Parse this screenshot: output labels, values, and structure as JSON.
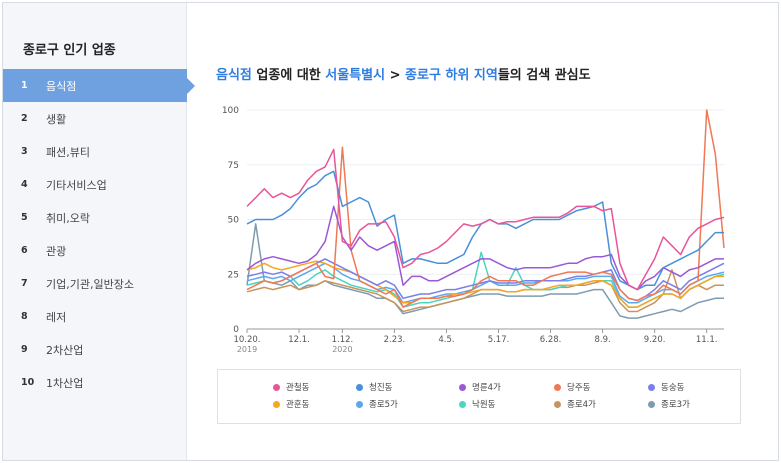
{
  "sidebar": {
    "title": "종로구 인기 업종",
    "items": [
      {
        "num": "1",
        "label": "음식점"
      },
      {
        "num": "2",
        "label": "생활"
      },
      {
        "num": "3",
        "label": "패션,뷰티"
      },
      {
        "num": "4",
        "label": "기타서비스업"
      },
      {
        "num": "5",
        "label": "취미,오락"
      },
      {
        "num": "6",
        "label": "관광"
      },
      {
        "num": "7",
        "label": "기업,기관,일반장소"
      },
      {
        "num": "8",
        "label": "레저"
      },
      {
        "num": "9",
        "label": "2차산업"
      },
      {
        "num": "10",
        "label": "1차산업"
      }
    ]
  },
  "heading": {
    "category": "음식점",
    "t1": " 업종에 대한 ",
    "city": "서울특별시",
    "sep": " > ",
    "district": "종로구 하위 지역",
    "t2": "들의 검색 관심도"
  },
  "chart_data": {
    "type": "line",
    "title": "",
    "xlabel": "",
    "ylabel": "",
    "ylim": [
      0,
      100
    ],
    "yticks": [
      0,
      25,
      50,
      75,
      100
    ],
    "n_points": 56,
    "xticks": [
      {
        "i": 0,
        "label": "10.20.",
        "sub": "2019"
      },
      {
        "i": 6,
        "label": "12.1.",
        "sub": ""
      },
      {
        "i": 11,
        "label": "1.12.",
        "sub": "2020"
      },
      {
        "i": 17,
        "label": "2.23.",
        "sub": ""
      },
      {
        "i": 23,
        "label": "4.5.",
        "sub": ""
      },
      {
        "i": 29,
        "label": "5.17.",
        "sub": ""
      },
      {
        "i": 35,
        "label": "6.28.",
        "sub": ""
      },
      {
        "i": 41,
        "label": "8.9.",
        "sub": ""
      },
      {
        "i": 47,
        "label": "9.20.",
        "sub": ""
      },
      {
        "i": 53,
        "label": "11.1.",
        "sub": ""
      }
    ],
    "series": [
      {
        "name": "관철동",
        "color": "#e8559a",
        "values": [
          56,
          60,
          64,
          60,
          62,
          60,
          62,
          68,
          72,
          74,
          82,
          40,
          38,
          45,
          48,
          48,
          49,
          42,
          28,
          30,
          34,
          35,
          37,
          40,
          44,
          48,
          47,
          48,
          50,
          48,
          49,
          49,
          50,
          51,
          51,
          51,
          51,
          53,
          56,
          56,
          56,
          54,
          55,
          30,
          20,
          18,
          25,
          32,
          42,
          38,
          34,
          42,
          46,
          48,
          50,
          51
        ]
      },
      {
        "name": "청진동",
        "color": "#4a90d9",
        "values": [
          48,
          50,
          50,
          50,
          52,
          55,
          60,
          64,
          66,
          70,
          72,
          56,
          58,
          60,
          58,
          47,
          50,
          52,
          30,
          32,
          32,
          31,
          30,
          30,
          32,
          34,
          42,
          48,
          50,
          48,
          48,
          46,
          48,
          50,
          50,
          50,
          50,
          52,
          54,
          55,
          56,
          58,
          30,
          22,
          20,
          18,
          20,
          20,
          28,
          30,
          32,
          34,
          36,
          40,
          44,
          44
        ]
      },
      {
        "name": "명륜4가",
        "color": "#9b59d6",
        "values": [
          27,
          30,
          32,
          33,
          32,
          31,
          30,
          31,
          34,
          40,
          56,
          42,
          36,
          42,
          38,
          36,
          38,
          40,
          20,
          24,
          24,
          22,
          22,
          24,
          26,
          28,
          30,
          32,
          32,
          30,
          28,
          27,
          28,
          28,
          28,
          28,
          29,
          30,
          30,
          32,
          33,
          33,
          34,
          24,
          20,
          18,
          22,
          24,
          28,
          26,
          24,
          27,
          28,
          30,
          32,
          32
        ]
      },
      {
        "name": "당주동",
        "color": "#f07855",
        "values": [
          18,
          20,
          22,
          21,
          22,
          24,
          26,
          28,
          30,
          24,
          23,
          83,
          36,
          22,
          20,
          18,
          16,
          18,
          10,
          12,
          14,
          14,
          14,
          15,
          15,
          16,
          18,
          22,
          24,
          22,
          22,
          22,
          20,
          20,
          22,
          24,
          25,
          26,
          26,
          26,
          25,
          26,
          25,
          18,
          14,
          13,
          15,
          16,
          20,
          18,
          16,
          20,
          22,
          100,
          80,
          37
        ]
      },
      {
        "name": "동숭동",
        "color": "#7b7fe6",
        "values": [
          24,
          25,
          26,
          25,
          26,
          24,
          26,
          28,
          30,
          32,
          30,
          28,
          26,
          24,
          22,
          20,
          22,
          20,
          14,
          15,
          16,
          16,
          17,
          18,
          18,
          19,
          20,
          21,
          22,
          21,
          21,
          21,
          22,
          22,
          22,
          22,
          22,
          23,
          24,
          24,
          25,
          26,
          27,
          18,
          14,
          13,
          15,
          18,
          22,
          20,
          18,
          22,
          24,
          26,
          28,
          30
        ]
      },
      {
        "name": "관훈동",
        "color": "#f5a623",
        "values": [
          27,
          28,
          30,
          28,
          27,
          28,
          29,
          30,
          31,
          30,
          28,
          27,
          26,
          24,
          22,
          20,
          18,
          15,
          12,
          12,
          14,
          14,
          14,
          15,
          16,
          16,
          17,
          18,
          18,
          18,
          17,
          17,
          18,
          18,
          18,
          19,
          20,
          20,
          20,
          21,
          22,
          22,
          20,
          14,
          10,
          10,
          12,
          14,
          16,
          16,
          14,
          18,
          20,
          22,
          24,
          24
        ]
      },
      {
        "name": "종로5가",
        "color": "#5aa9f0",
        "values": [
          22,
          23,
          24,
          23,
          24,
          22,
          24,
          26,
          28,
          30,
          28,
          25,
          23,
          22,
          20,
          18,
          19,
          18,
          12,
          13,
          14,
          14,
          15,
          16,
          16,
          17,
          18,
          20,
          22,
          20,
          20,
          20,
          21,
          21,
          22,
          22,
          22,
          22,
          23,
          23,
          24,
          24,
          24,
          15,
          12,
          12,
          14,
          16,
          18,
          18,
          16,
          20,
          22,
          24,
          25,
          26
        ]
      },
      {
        "name": "낙원동",
        "color": "#4cd4c0",
        "values": [
          20,
          21,
          22,
          21,
          22,
          24,
          20,
          22,
          25,
          27,
          24,
          22,
          20,
          19,
          18,
          17,
          18,
          16,
          10,
          11,
          12,
          12,
          13,
          14,
          15,
          16,
          18,
          35,
          22,
          20,
          20,
          28,
          20,
          18,
          18,
          18,
          19,
          20,
          20,
          21,
          22,
          22,
          22,
          14,
          10,
          10,
          12,
          14,
          16,
          16,
          14,
          18,
          20,
          22,
          24,
          25
        ]
      },
      {
        "name": "종로4가",
        "color": "#c9945a",
        "values": [
          17,
          18,
          19,
          18,
          19,
          20,
          18,
          19,
          20,
          22,
          21,
          20,
          19,
          18,
          17,
          16,
          14,
          12,
          8,
          9,
          10,
          10,
          11,
          12,
          13,
          14,
          16,
          18,
          18,
          18,
          17,
          17,
          18,
          18,
          18,
          18,
          19,
          19,
          20,
          20,
          21,
          22,
          20,
          12,
          8,
          8,
          10,
          12,
          16,
          27,
          14,
          18,
          20,
          18,
          20,
          20
        ]
      },
      {
        "name": "종로3가",
        "color": "#7f9bb0",
        "values": [
          20,
          48,
          22,
          21,
          20,
          22,
          18,
          20,
          20,
          22,
          20,
          19,
          18,
          17,
          16,
          14,
          14,
          12,
          7,
          8,
          9,
          10,
          11,
          12,
          13,
          14,
          15,
          16,
          16,
          16,
          15,
          15,
          15,
          15,
          15,
          16,
          16,
          16,
          16,
          17,
          18,
          18,
          12,
          6,
          5,
          5,
          6,
          7,
          8,
          9,
          8,
          10,
          12,
          13,
          14,
          14
        ]
      }
    ]
  }
}
